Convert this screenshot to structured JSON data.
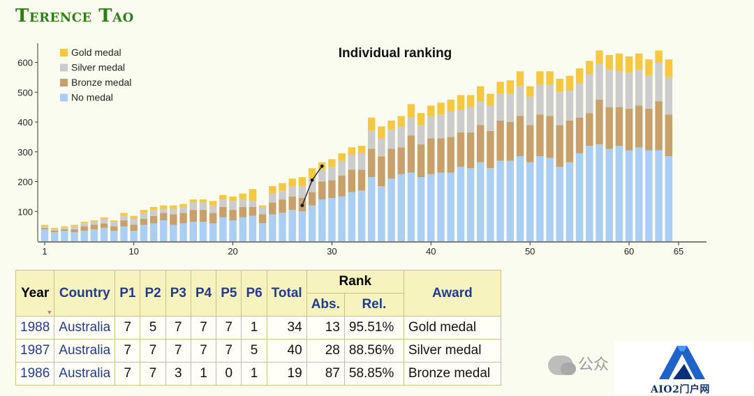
{
  "page": {
    "title": "Terence Tao"
  },
  "colors": {
    "gold": "#f4c842",
    "silver": "#cccccc",
    "bronze": "#c8a06b",
    "none": "#aacef4",
    "title_green": "#2e7d16",
    "header_blue": "#223b8c"
  },
  "chart_data": {
    "type": "bar",
    "stacked": true,
    "title": "Individual ranking",
    "xlabel": "",
    "ylabel": "",
    "xlim": [
      1,
      65
    ],
    "ylim": [
      0,
      640
    ],
    "x_ticks": [
      1,
      10,
      20,
      30,
      40,
      50,
      60,
      65
    ],
    "y_ticks": [
      100,
      200,
      300,
      400,
      500,
      600
    ],
    "legend_position": "top-left",
    "series": [
      {
        "name": "No medal",
        "color": "#aacef4",
        "values": [
          40,
          30,
          35,
          30,
          35,
          40,
          45,
          35,
          50,
          35,
          55,
          60,
          70,
          55,
          60,
          65,
          65,
          60,
          80,
          70,
          80,
          85,
          60,
          90,
          95,
          105,
          100,
          120,
          140,
          145,
          150,
          165,
          170,
          215,
          185,
          210,
          225,
          230,
          215,
          225,
          230,
          230,
          250,
          245,
          265,
          245,
          270,
          270,
          285,
          265,
          285,
          280,
          250,
          265,
          295,
          320,
          325,
          310,
          320,
          305,
          315,
          305,
          305,
          285,
          0
        ]
      },
      {
        "name": "Bronze medal",
        "color": "#c8a06b",
        "values": [
          5,
          5,
          5,
          10,
          15,
          15,
          15,
          15,
          20,
          20,
          20,
          25,
          25,
          35,
          35,
          40,
          40,
          35,
          35,
          35,
          35,
          30,
          30,
          40,
          45,
          45,
          45,
          45,
          60,
          60,
          70,
          75,
          70,
          95,
          100,
          100,
          90,
          125,
          110,
          120,
          115,
          120,
          115,
          120,
          125,
          125,
          135,
          130,
          135,
          125,
          140,
          140,
          140,
          140,
          120,
          110,
          150,
          140,
          130,
          140,
          140,
          140,
          165,
          140,
          0
        ]
      },
      {
        "name": "Silver medal",
        "color": "#cccccc",
        "values": [
          5,
          5,
          5,
          10,
          10,
          10,
          15,
          15,
          15,
          20,
          20,
          20,
          15,
          20,
          20,
          25,
          25,
          25,
          25,
          30,
          25,
          20,
          25,
          30,
          30,
          35,
          40,
          45,
          40,
          45,
          50,
          50,
          55,
          60,
          60,
          65,
          70,
          60,
          65,
          75,
          80,
          85,
          75,
          85,
          80,
          85,
          90,
          95,
          100,
          95,
          100,
          105,
          110,
          100,
          115,
          130,
          120,
          125,
          120,
          120,
          120,
          110,
          130,
          125,
          0
        ]
      },
      {
        "name": "Gold medal",
        "color": "#f4c842",
        "values": [
          5,
          5,
          5,
          5,
          5,
          5,
          5,
          5,
          10,
          10,
          10,
          10,
          10,
          10,
          10,
          10,
          10,
          15,
          15,
          15,
          20,
          40,
          5,
          25,
          25,
          25,
          30,
          35,
          25,
          25,
          25,
          25,
          25,
          45,
          40,
          30,
          35,
          45,
          40,
          35,
          40,
          40,
          50,
          40,
          50,
          40,
          40,
          45,
          50,
          35,
          45,
          45,
          45,
          50,
          50,
          45,
          45,
          50,
          60,
          55,
          55,
          55,
          40,
          60,
          0
        ]
      }
    ],
    "x": [
      1,
      2,
      3,
      4,
      5,
      6,
      7,
      8,
      9,
      10,
      11,
      12,
      13,
      14,
      15,
      16,
      17,
      18,
      19,
      20,
      21,
      22,
      23,
      24,
      25,
      26,
      27,
      28,
      29,
      30,
      31,
      32,
      33,
      34,
      35,
      36,
      37,
      38,
      39,
      40,
      41,
      42,
      43,
      44,
      45,
      46,
      47,
      48,
      49,
      50,
      51,
      52,
      53,
      54,
      55,
      56,
      57,
      58,
      59,
      60,
      61,
      62,
      63,
      64,
      65
    ],
    "highlight_line": {
      "x": [
        27,
        28,
        29
      ],
      "y": [
        120,
        205,
        252
      ]
    }
  },
  "table": {
    "headers": {
      "year": "Year",
      "country": "Country",
      "p1": "P1",
      "p2": "P2",
      "p3": "P3",
      "p4": "P4",
      "p5": "P5",
      "p6": "P6",
      "total": "Total",
      "rank": "Rank",
      "abs": "Abs.",
      "rel": "Rel.",
      "award": "Award"
    },
    "rows": [
      {
        "year": "1988",
        "country": "Australia",
        "p1": "7",
        "p2": "5",
        "p3": "7",
        "p4": "7",
        "p5": "7",
        "p6": "1",
        "total": "34",
        "abs": "13",
        "rel": "95.51%",
        "award": "Gold medal"
      },
      {
        "year": "1987",
        "country": "Australia",
        "p1": "7",
        "p2": "7",
        "p3": "7",
        "p4": "7",
        "p5": "7",
        "p6": "5",
        "total": "40",
        "abs": "28",
        "rel": "88.56%",
        "award": "Silver medal"
      },
      {
        "year": "1986",
        "country": "Australia",
        "p1": "7",
        "p2": "7",
        "p3": "3",
        "p4": "1",
        "p5": "0",
        "p6": "1",
        "total": "19",
        "abs": "87",
        "rel": "58.85%",
        "award": "Bronze medal"
      }
    ]
  },
  "watermark": {
    "text": "公众",
    "logo_text": "AIO2门户网",
    "icon": "wechat-icon"
  }
}
